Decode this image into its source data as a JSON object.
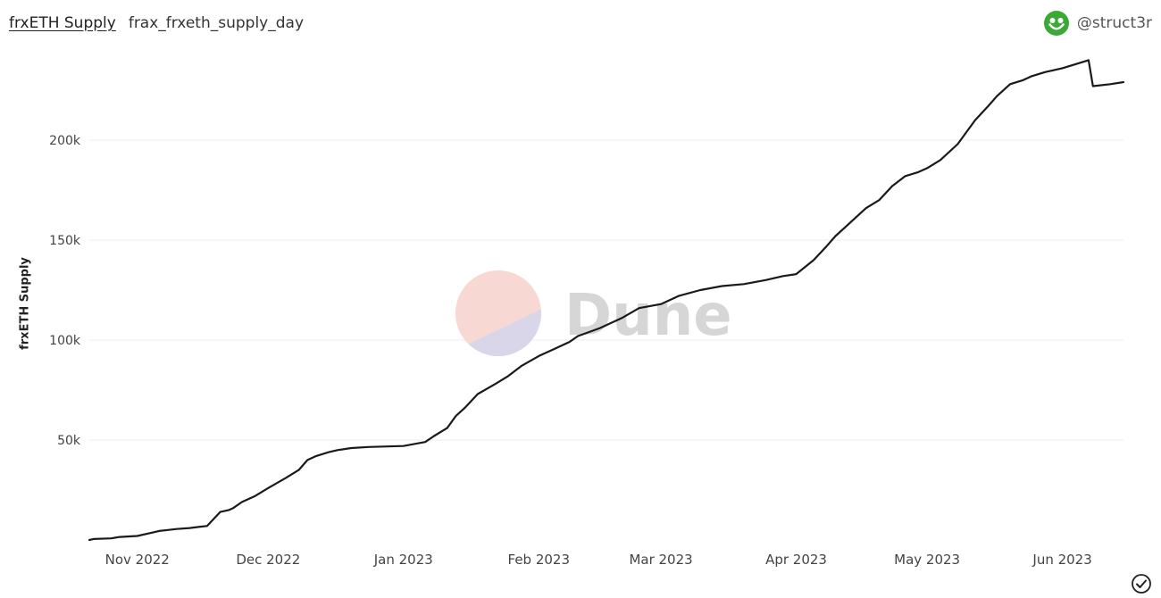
{
  "header": {
    "title": "frxETH Supply",
    "subtitle": "frax_frxeth_supply_day"
  },
  "author": {
    "handle": "@struct3r",
    "avatar_icon": "smiley-face-icon",
    "avatar_color": "#3aaa35"
  },
  "watermark": {
    "text": "Dune",
    "icon": "dune-logo-icon"
  },
  "footer": {
    "icon": "check-circle-icon"
  },
  "chart_data": {
    "type": "line",
    "title": "",
    "xlabel": "",
    "ylabel": "frxETH Supply",
    "x_ticks": [
      "2022-11-01",
      "2022-12-01",
      "2023-01-01",
      "2023-02-01",
      "2023-03-01",
      "2023-04-01",
      "2023-05-01",
      "2023-06-01"
    ],
    "x_tick_labels": [
      "Nov 2022",
      "Dec 2022",
      "Jan 2023",
      "Feb 2023",
      "Mar 2023",
      "Apr 2023",
      "May 2023",
      "Jun 2023"
    ],
    "y_ticks": [
      50000,
      100000,
      150000,
      200000
    ],
    "y_tick_labels": [
      "50k",
      "100k",
      "150k",
      "200k"
    ],
    "xlim": [
      "2022-10-21",
      "2023-06-15"
    ],
    "ylim": [
      0,
      250000
    ],
    "grid": true,
    "line_color": "#1a1a1a",
    "series": [
      {
        "x": [
          "2022-10-21",
          "2022-10-22",
          "2022-10-26",
          "2022-10-28",
          "2022-11-01",
          "2022-11-04",
          "2022-11-06",
          "2022-11-08",
          "2022-11-10",
          "2022-11-13",
          "2022-11-15",
          "2022-11-17",
          "2022-11-20",
          "2022-11-22",
          "2022-11-23",
          "2022-11-25",
          "2022-11-28",
          "2022-12-01",
          "2022-12-05",
          "2022-12-08",
          "2022-12-10",
          "2022-12-12",
          "2022-12-15",
          "2022-12-17",
          "2022-12-20",
          "2022-12-24",
          "2023-01-01",
          "2023-01-06",
          "2023-01-08",
          "2023-01-11",
          "2023-01-13",
          "2023-01-15",
          "2023-01-18",
          "2023-01-22",
          "2023-01-25",
          "2023-01-28",
          "2023-02-01",
          "2023-02-04",
          "2023-02-08",
          "2023-02-10",
          "2023-02-15",
          "2023-02-20",
          "2023-02-24",
          "2023-03-01",
          "2023-03-05",
          "2023-03-10",
          "2023-03-15",
          "2023-03-20",
          "2023-03-25",
          "2023-03-29",
          "2023-04-01",
          "2023-04-05",
          "2023-04-08",
          "2023-04-10",
          "2023-04-12",
          "2023-04-14",
          "2023-04-17",
          "2023-04-20",
          "2023-04-23",
          "2023-04-26",
          "2023-04-29",
          "2023-05-01",
          "2023-05-04",
          "2023-05-08",
          "2023-05-12",
          "2023-05-15",
          "2023-05-17",
          "2023-05-20",
          "2023-05-23",
          "2023-05-25",
          "2023-05-28",
          "2023-06-01",
          "2023-06-04",
          "2023-06-07",
          "2023-06-08",
          "2023-06-12",
          "2023-06-15"
        ],
        "y": [
          0,
          500,
          800,
          1500,
          2000,
          3500,
          4500,
          5000,
          5500,
          6000,
          6500,
          7000,
          14000,
          15000,
          16000,
          19000,
          22000,
          26000,
          31000,
          35000,
          40000,
          42000,
          44000,
          45000,
          46000,
          46500,
          47000,
          49000,
          52000,
          56000,
          62000,
          66000,
          73000,
          78000,
          82000,
          87000,
          92000,
          95000,
          99000,
          102000,
          106000,
          111000,
          116000,
          118000,
          122000,
          125000,
          127000,
          128000,
          130000,
          132000,
          133000,
          140000,
          147000,
          152000,
          156000,
          160000,
          166000,
          170000,
          177000,
          182000,
          184000,
          186000,
          190000,
          198000,
          210000,
          217000,
          222000,
          228000,
          230000,
          232000,
          234000,
          236000,
          238000,
          240000,
          227000,
          228000,
          229000
        ]
      }
    ]
  }
}
